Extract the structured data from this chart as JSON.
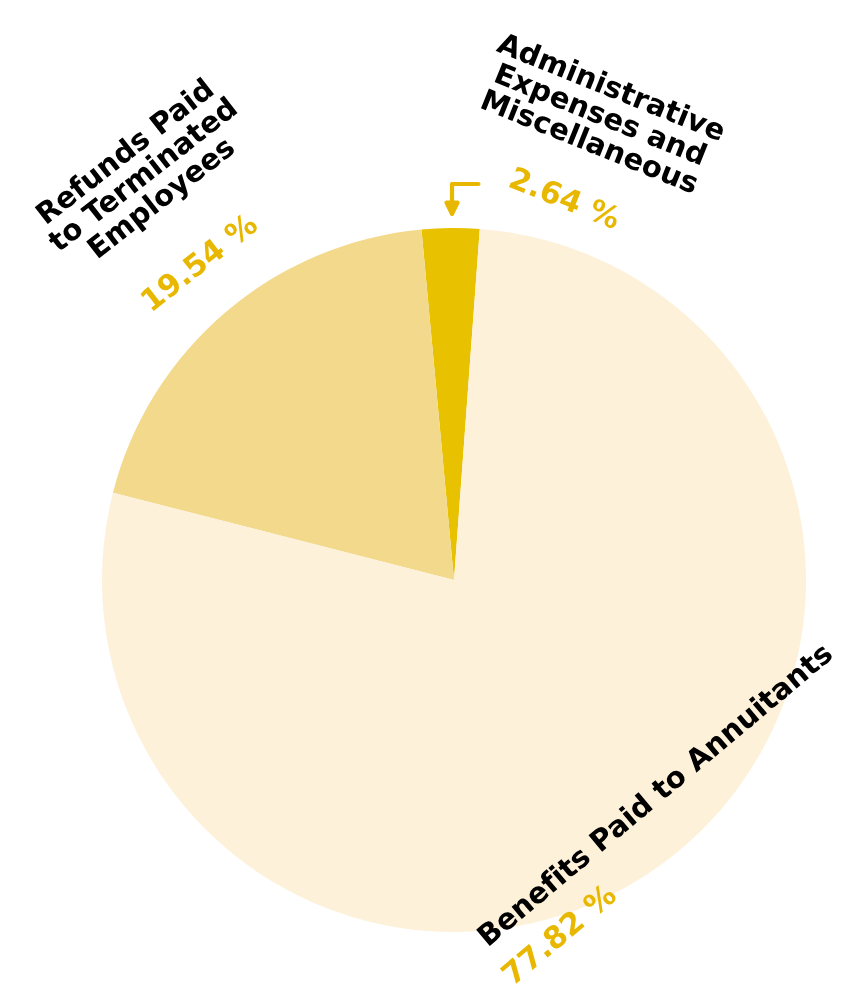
{
  "chart_data": {
    "type": "pie",
    "categories": [
      "Administrative\nExpenses and\nMiscellaneous",
      "Refunds Paid\nto Terminated\nEmployees",
      "Benefits Paid to Annuitants"
    ],
    "values": [
      2.64,
      19.54,
      77.82
    ],
    "colors": [
      "#e8c100",
      "#f2d98c",
      "#fdf1da"
    ],
    "value_labels": [
      "2.64 %",
      "19.54 %",
      "77.82 %"
    ],
    "legend": false
  }
}
